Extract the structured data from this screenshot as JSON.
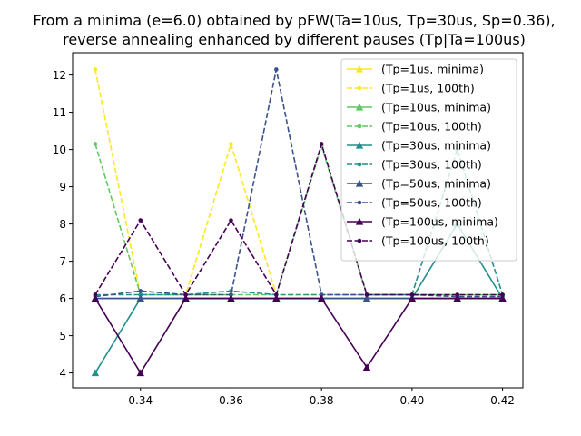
{
  "chart_data": {
    "type": "line",
    "title_lines": [
      "From a minima (e=6.0) obtained by pFW(Ta=10us, Tp=30us, Sp=0.36),",
      "reverse annealing enhanced by different pauses (Tp|Ta=100us)"
    ],
    "xlabel": "",
    "ylabel": "",
    "x": [
      0.33,
      0.34,
      0.35,
      0.36,
      0.37,
      0.38,
      0.39,
      0.4,
      0.41,
      0.42
    ],
    "xlim": [
      0.325,
      0.4245
    ],
    "ylim": [
      3.6,
      12.6
    ],
    "xticks": [
      0.34,
      0.36,
      0.38,
      0.4,
      0.42
    ],
    "xtick_labels": [
      "0.34",
      "0.36",
      "0.38",
      "0.40",
      "0.42"
    ],
    "yticks": [
      4,
      5,
      6,
      7,
      8,
      9,
      10,
      11,
      12
    ],
    "ytick_labels": [
      "4",
      "5",
      "6",
      "7",
      "8",
      "9",
      "10",
      "11",
      "12"
    ],
    "grid": false,
    "legend_position": "upper right",
    "series": [
      {
        "name": "(Tp=1us, minima)",
        "color": "#fde725",
        "style": "solid",
        "marker": "triangle",
        "values": [
          6.0,
          6.0,
          6.0,
          6.0,
          6.0,
          6.0,
          6.0,
          6.0,
          6.0,
          6.0
        ]
      },
      {
        "name": "(Tp=1us, 100th)",
        "color": "#fde725",
        "style": "dashed",
        "marker": "dot",
        "values": [
          12.15,
          6.1,
          6.1,
          10.15,
          6.1,
          6.1,
          6.1,
          6.1,
          6.1,
          6.1
        ]
      },
      {
        "name": "(Tp=10us, minima)",
        "color": "#5ec962",
        "style": "solid",
        "marker": "triangle",
        "values": [
          6.0,
          6.0,
          6.0,
          6.0,
          6.0,
          6.0,
          6.0,
          6.0,
          6.0,
          6.0
        ]
      },
      {
        "name": "(Tp=10us, 100th)",
        "color": "#5ec962",
        "style": "dashed",
        "marker": "dot",
        "values": [
          10.15,
          6.1,
          6.1,
          6.1,
          6.1,
          10.1,
          6.1,
          6.1,
          6.1,
          6.1
        ]
      },
      {
        "name": "(Tp=30us, minima)",
        "color": "#21918c",
        "style": "solid",
        "marker": "triangle",
        "values": [
          4.0,
          6.0,
          6.0,
          6.0,
          6.0,
          6.0,
          6.0,
          6.0,
          8.0,
          6.0
        ]
      },
      {
        "name": "(Tp=30us, 100th)",
        "color": "#21918c",
        "style": "dashed",
        "marker": "dot",
        "values": [
          6.1,
          6.1,
          6.1,
          6.2,
          6.1,
          6.1,
          6.1,
          6.1,
          10.0,
          6.1
        ]
      },
      {
        "name": "(Tp=50us, minima)",
        "color": "#3b528b",
        "style": "solid",
        "marker": "triangle",
        "values": [
          6.0,
          6.0,
          6.0,
          6.0,
          6.0,
          6.0,
          6.0,
          6.0,
          6.0,
          6.0
        ]
      },
      {
        "name": "(Tp=50us, 100th)",
        "color": "#3b528b",
        "style": "dashed",
        "marker": "dot",
        "values": [
          6.05,
          6.2,
          6.1,
          6.1,
          12.15,
          6.1,
          6.1,
          6.1,
          6.05,
          6.05
        ]
      },
      {
        "name": "(Tp=100us, minima)",
        "color": "#440154",
        "style": "solid",
        "marker": "triangle",
        "values": [
          6.0,
          4.0,
          6.0,
          6.0,
          6.0,
          6.0,
          4.15,
          6.0,
          6.0,
          6.0
        ]
      },
      {
        "name": "(Tp=100us, 100th)",
        "color": "#440154",
        "style": "dashed",
        "marker": "dot",
        "values": [
          6.1,
          8.1,
          6.1,
          8.1,
          6.1,
          10.15,
          6.1,
          6.1,
          6.1,
          6.1
        ]
      }
    ]
  }
}
